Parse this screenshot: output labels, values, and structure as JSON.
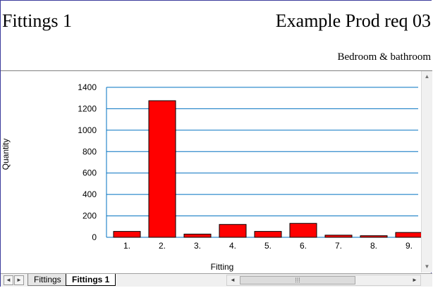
{
  "header": {
    "title": "Fittings 1",
    "product": "Example Prod req 03",
    "subtitle": "Bedroom & bathroom"
  },
  "sheet_tabs": [
    {
      "label": "Fittings",
      "active": false
    },
    {
      "label": "Fittings 1",
      "active": true
    }
  ],
  "scroll": {
    "left_arrow": "◄",
    "right_arrow": "►",
    "up_arrow": "▲",
    "down_arrow": "▼",
    "thumb_grip": "⁞⁞⁞"
  },
  "chart_data": {
    "type": "bar",
    "categories": [
      "1.",
      "2.",
      "3.",
      "4.",
      "5.",
      "6.",
      "7.",
      "8.",
      "9."
    ],
    "values": [
      55,
      1275,
      30,
      120,
      55,
      130,
      20,
      15,
      45
    ],
    "xlabel": "Fitting",
    "ylabel": "Quantity",
    "ylim": [
      0,
      1400
    ],
    "yticks": [
      0,
      200,
      400,
      600,
      800,
      1000,
      1200,
      1400
    ],
    "grid": true,
    "bar_color": "#ff0000",
    "grid_color": "#0070c0"
  }
}
